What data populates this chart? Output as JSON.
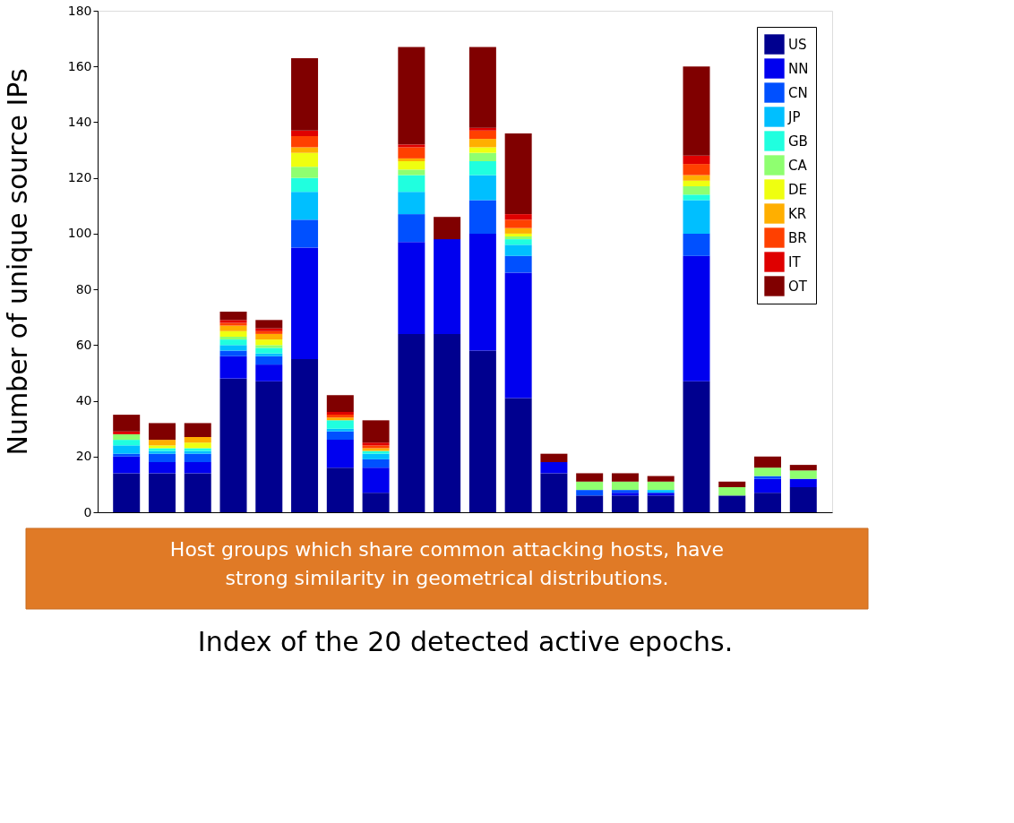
{
  "chart_data": {
    "type": "bar",
    "stacked": true,
    "xlabel": "Index of the 20 detected active epochs.",
    "ylabel": "Number of unique source IPs",
    "categories": [
      null,
      null,
      null,
      null,
      null,
      null,
      null,
      null,
      null,
      null,
      null,
      null,
      null,
      null,
      null,
      null,
      null,
      null,
      null,
      null
    ],
    "series": [
      {
        "name": "US",
        "color": "#00008f",
        "values": [
          14,
          14,
          14,
          48,
          47,
          55,
          16,
          7,
          64,
          64,
          58,
          41,
          14,
          6,
          6,
          6,
          47,
          6,
          7,
          9
        ]
      },
      {
        "name": "NN",
        "color": "#0000ef",
        "values": [
          6,
          4,
          4,
          8,
          6,
          40,
          10,
          9,
          33,
          34,
          42,
          45,
          4,
          0,
          1,
          1,
          45,
          0,
          5,
          3
        ]
      },
      {
        "name": "CN",
        "color": "#0050ff",
        "values": [
          1,
          3,
          3,
          2,
          3,
          10,
          3,
          3,
          10,
          0,
          12,
          6,
          0,
          2,
          1,
          0,
          8,
          0,
          1,
          0
        ]
      },
      {
        "name": "JP",
        "color": "#00bfff",
        "values": [
          3,
          1,
          1,
          2,
          1,
          10,
          1,
          2,
          8,
          0,
          9,
          4,
          0,
          0,
          0,
          1,
          12,
          0,
          0,
          0
        ]
      },
      {
        "name": "GB",
        "color": "#20ffdf",
        "values": [
          2,
          1,
          1,
          2,
          2,
          5,
          3,
          1,
          6,
          0,
          5,
          2,
          0,
          0,
          0,
          0,
          2,
          0,
          0,
          0
        ]
      },
      {
        "name": "CA",
        "color": "#8fff70",
        "values": [
          2,
          0,
          0,
          1,
          1,
          4,
          0,
          0,
          2,
          0,
          3,
          1,
          0,
          3,
          3,
          3,
          3,
          3,
          3,
          3
        ]
      },
      {
        "name": "DE",
        "color": "#efff10",
        "values": [
          0,
          1,
          2,
          2,
          2,
          5,
          0,
          0,
          3,
          0,
          2,
          1,
          0,
          0,
          0,
          0,
          2,
          0,
          0,
          0
        ]
      },
      {
        "name": "KR",
        "color": "#ffaf00",
        "values": [
          0,
          2,
          2,
          2,
          2,
          2,
          1,
          1,
          1,
          0,
          3,
          2,
          0,
          0,
          0,
          0,
          2,
          0,
          0,
          0
        ]
      },
      {
        "name": "BR",
        "color": "#ff4000",
        "values": [
          0,
          0,
          0,
          1,
          1,
          4,
          1,
          1,
          4,
          0,
          3,
          3,
          0,
          0,
          0,
          0,
          4,
          0,
          0,
          0
        ]
      },
      {
        "name": "IT",
        "color": "#df0000",
        "values": [
          1,
          0,
          0,
          1,
          1,
          2,
          1,
          1,
          1,
          0,
          1,
          2,
          0,
          0,
          0,
          0,
          3,
          0,
          0,
          0
        ]
      },
      {
        "name": "OT",
        "color": "#800000",
        "values": [
          6,
          6,
          5,
          3,
          3,
          26,
          6,
          8,
          35,
          8,
          29,
          29,
          3,
          3,
          3,
          2,
          32,
          2,
          4,
          2
        ]
      }
    ],
    "ylim": [
      0,
      180
    ],
    "yticks": [
      0,
      20,
      40,
      60,
      80,
      100,
      120,
      140,
      160,
      180
    ],
    "tick_labels": "y",
    "legend": "top right",
    "grid": false,
    "annotations": [
      "Host groups which share common attacking hosts, have\nstrong similarity in geometrical distributions."
    ]
  }
}
